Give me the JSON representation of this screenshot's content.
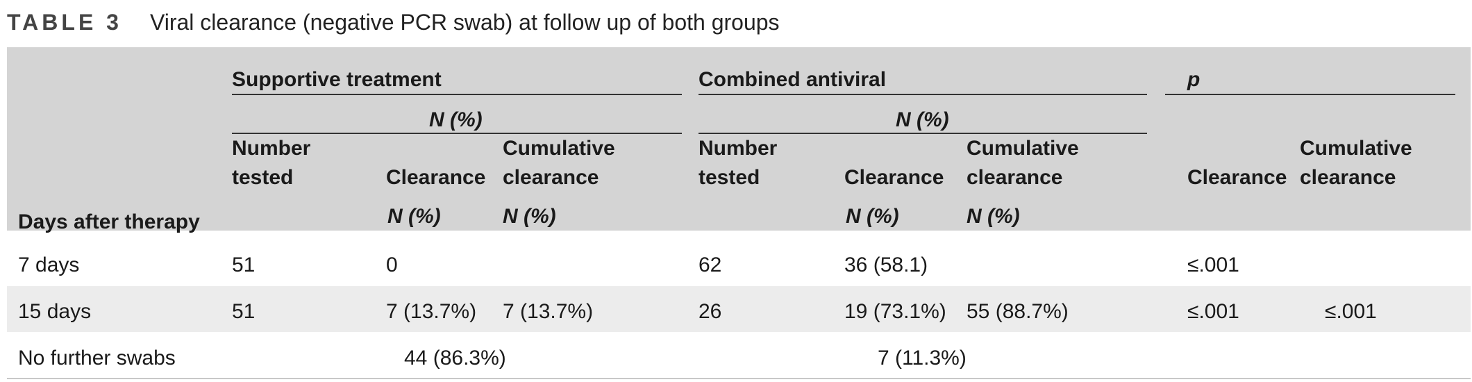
{
  "table": {
    "label": "TABLE 3",
    "title": "Viral clearance (negative PCR swab) at follow up of both groups",
    "header": {
      "row_label": "Days after therapy",
      "group1": "Supportive treatment",
      "group2": "Combined antiviral",
      "p_group": "p",
      "n_pct": "N (%)",
      "number_line1": "Number",
      "number_line2": "tested",
      "clearance": "Clearance",
      "cumulative_line1": "Cumulative",
      "cumulative_line2": "clearance"
    },
    "rows": [
      {
        "label": "7 days",
        "s_tested": "51",
        "s_clear": "0",
        "s_cum": "",
        "c_tested": "62",
        "c_clear": "36 (58.1)",
        "c_cum": "",
        "p_clear": "≤.001",
        "p_cum": ""
      },
      {
        "label": "15 days",
        "s_tested": "51",
        "s_clear": "7 (13.7%)",
        "s_cum": "7 (13.7%)",
        "c_tested": "26",
        "c_clear": "19 (73.1%)",
        "c_cum": "55 (88.7%)",
        "p_clear": "≤.001",
        "p_cum": "≤.001"
      },
      {
        "label": "No further swabs",
        "s_merged": "44 (86.3%)",
        "c_merged": "7 (11.3%)"
      }
    ]
  }
}
